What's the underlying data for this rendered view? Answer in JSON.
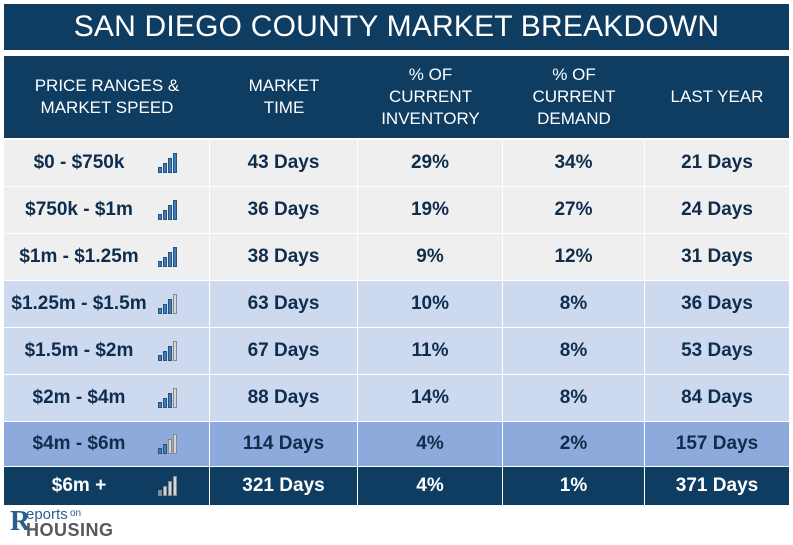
{
  "title": "SAN DIEGO COUNTY MARKET BREAKDOWN",
  "headers": [
    "PRICE RANGES &\nMARKET SPEED",
    "MARKET\nTIME",
    "% OF\nCURRENT\nINVENTORY",
    "% OF\nCURRENT\nDEMAND",
    "LAST YEAR"
  ],
  "rows": [
    {
      "range": "$0 - $750k",
      "speed_bars_filled": 4,
      "market_time": "43 Days",
      "inventory": "29%",
      "demand": "34%",
      "last_year": "21 Days",
      "bg": "#efefef"
    },
    {
      "range": "$750k - $1m",
      "speed_bars_filled": 4,
      "market_time": "36 Days",
      "inventory": "19%",
      "demand": "27%",
      "last_year": "24 Days",
      "bg": "#efefef"
    },
    {
      "range": "$1m - $1.25m",
      "speed_bars_filled": 4,
      "market_time": "38 Days",
      "inventory": "9%",
      "demand": "12%",
      "last_year": "31 Days",
      "bg": "#efefef"
    },
    {
      "range": "$1.25m - $1.5m",
      "speed_bars_filled": 3,
      "market_time": "63 Days",
      "inventory": "10%",
      "demand": "8%",
      "last_year": "36 Days",
      "bg": "#cdd9ef"
    },
    {
      "range": "$1.5m - $2m",
      "speed_bars_filled": 3,
      "market_time": "67 Days",
      "inventory": "11%",
      "demand": "8%",
      "last_year": "53 Days",
      "bg": "#cdd9ef"
    },
    {
      "range": "$2m - $4m",
      "speed_bars_filled": 3,
      "market_time": "88 Days",
      "inventory": "14%",
      "demand": "8%",
      "last_year": "84 Days",
      "bg": "#cdd9ef"
    },
    {
      "range": "$4m - $6m",
      "speed_bars_filled": 2,
      "market_time": "114 Days",
      "inventory": "4%",
      "demand": "2%",
      "last_year": "157 Days",
      "bg": "#8ea9db"
    },
    {
      "range": "$6m +",
      "speed_bars_filled": 1,
      "market_time": "321 Days",
      "inventory": "4%",
      "demand": "1%",
      "last_year": "371 Days",
      "bg": "#0f3c61"
    }
  ],
  "logo": {
    "r": "R",
    "eports": "eports",
    "on": "on",
    "housing": "HOUSING"
  },
  "colors": {
    "header_bg": "#0f3c61",
    "text_dark": "#0f2d4d",
    "bar_blue": "#3f7bbf",
    "bar_gray": "#d6d6d6"
  }
}
